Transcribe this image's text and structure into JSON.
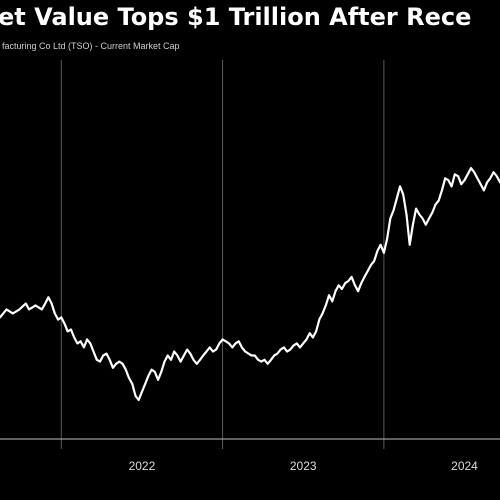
{
  "header": {
    "title": "et Value Tops $1 Trillion After Rece",
    "subtitle": "facturing Co Ltd (TSO) - Current Market Cap"
  },
  "colors": {
    "background": "#000000",
    "line": "#ffffff",
    "grid": "#5a5a5a",
    "text": "#ffffff"
  },
  "chart_data": {
    "type": "line",
    "title": "et Value Tops $1 Trillion After Rece",
    "subtitle": "facturing Co Ltd (TSO) - Current Market Cap",
    "xlabel": "",
    "ylabel": "",
    "x_ticks": [
      "2022",
      "2023",
      "2024"
    ],
    "xlim": [
      2021.62,
      2024.72
    ],
    "ylim": [
      0,
      1
    ],
    "grid": true,
    "y_axis_visible": false,
    "series": [
      {
        "x": [
          2021.62,
          2021.66,
          2021.7,
          2021.74,
          2021.78,
          2021.8,
          2021.82,
          2021.84,
          2021.86,
          2021.88,
          2021.9,
          2021.92,
          2021.94,
          2021.96,
          2021.98,
          2022.0,
          2022.02,
          2022.04,
          2022.06,
          2022.08,
          2022.1,
          2022.12,
          2022.14,
          2022.16,
          2022.18,
          2022.2,
          2022.22,
          2022.24,
          2022.26,
          2022.28,
          2022.3,
          2022.32,
          2022.34,
          2022.36,
          2022.38,
          2022.4,
          2022.42,
          2022.44,
          2022.46,
          2022.48,
          2022.5,
          2022.52,
          2022.54,
          2022.56,
          2022.58,
          2022.6,
          2022.62,
          2022.64,
          2022.66,
          2022.68,
          2022.7,
          2022.72,
          2022.74,
          2022.76,
          2022.78,
          2022.8,
          2022.82,
          2022.84,
          2022.86,
          2022.88,
          2022.9,
          2022.92,
          2022.94,
          2022.96,
          2022.98,
          2023.0,
          2023.02,
          2023.04,
          2023.06,
          2023.08,
          2023.1,
          2023.12,
          2023.14,
          2023.16,
          2023.18,
          2023.2,
          2023.22,
          2023.24,
          2023.26,
          2023.28,
          2023.3,
          2023.32,
          2023.34,
          2023.36,
          2023.38,
          2023.4,
          2023.42,
          2023.44,
          2023.46,
          2023.48,
          2023.5,
          2023.52,
          2023.54,
          2023.56,
          2023.58,
          2023.6,
          2023.62,
          2023.64,
          2023.66,
          2023.68,
          2023.7,
          2023.72,
          2023.74,
          2023.76,
          2023.78,
          2023.8,
          2023.82,
          2023.84,
          2023.86,
          2023.88,
          2023.9,
          2023.92,
          2023.94,
          2023.96,
          2023.98,
          2024.0,
          2024.02,
          2024.04,
          2024.06,
          2024.08,
          2024.1,
          2024.12,
          2024.14,
          2024.16,
          2024.18,
          2024.2,
          2024.22,
          2024.24,
          2024.26,
          2024.28,
          2024.3,
          2024.32,
          2024.34,
          2024.36,
          2024.38,
          2024.4,
          2024.42,
          2024.44,
          2024.46,
          2024.48,
          2024.5,
          2024.52,
          2024.54,
          2024.56,
          2024.58,
          2024.6,
          2024.62,
          2024.64,
          2024.66,
          2024.68,
          2024.7,
          2024.72
        ],
        "values": [
          0.338,
          0.368,
          0.353,
          0.368,
          0.39,
          0.368,
          0.375,
          0.383,
          0.375,
          0.368,
          0.39,
          0.413,
          0.39,
          0.353,
          0.33,
          0.338,
          0.315,
          0.286,
          0.293,
          0.263,
          0.241,
          0.249,
          0.226,
          0.256,
          0.241,
          0.211,
          0.18,
          0.173,
          0.196,
          0.203,
          0.18,
          0.15,
          0.165,
          0.173,
          0.165,
          0.143,
          0.112,
          0.09,
          0.045,
          0.03,
          0.06,
          0.09,
          0.12,
          0.143,
          0.135,
          0.105,
          0.135,
          0.173,
          0.196,
          0.18,
          0.211,
          0.196,
          0.173,
          0.196,
          0.218,
          0.203,
          0.18,
          0.165,
          0.18,
          0.196,
          0.211,
          0.226,
          0.211,
          0.218,
          0.241,
          0.256,
          0.249,
          0.241,
          0.226,
          0.241,
          0.249,
          0.226,
          0.211,
          0.203,
          0.196,
          0.196,
          0.18,
          0.173,
          0.18,
          0.165,
          0.18,
          0.196,
          0.203,
          0.218,
          0.226,
          0.211,
          0.218,
          0.233,
          0.241,
          0.226,
          0.241,
          0.256,
          0.279,
          0.263,
          0.286,
          0.331,
          0.353,
          0.383,
          0.421,
          0.398,
          0.436,
          0.458,
          0.444,
          0.466,
          0.474,
          0.489,
          0.459,
          0.436,
          0.466,
          0.489,
          0.511,
          0.534,
          0.549,
          0.586,
          0.609,
          0.579,
          0.631,
          0.707,
          0.737,
          0.782,
          0.827,
          0.797,
          0.722,
          0.609,
          0.684,
          0.744,
          0.722,
          0.707,
          0.684,
          0.707,
          0.729,
          0.759,
          0.774,
          0.812,
          0.857,
          0.85,
          0.827,
          0.872,
          0.865,
          0.835,
          0.85,
          0.872,
          0.895,
          0.88,
          0.857,
          0.835,
          0.812,
          0.842,
          0.857,
          0.88,
          0.865,
          0.842
        ]
      }
    ]
  }
}
